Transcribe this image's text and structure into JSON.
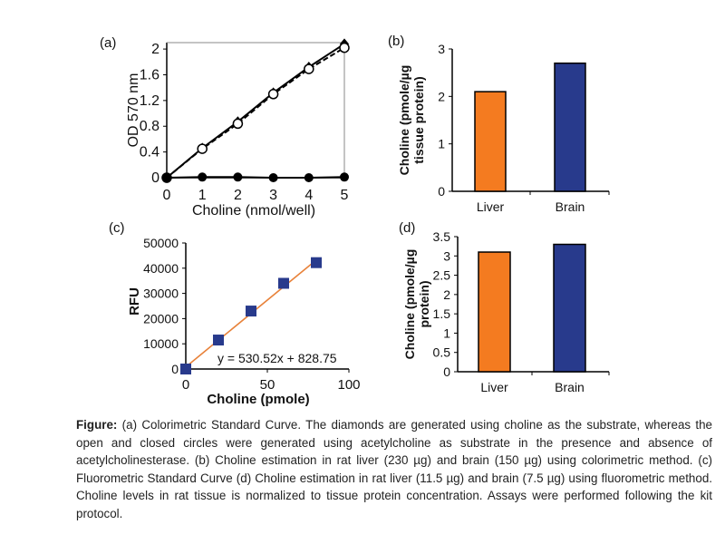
{
  "chart_data": [
    {
      "panel": "(a)",
      "type": "line",
      "xlabel": "Choline  (nmol/well)",
      "ylabel": "OD 570 nm",
      "xlim": [
        0,
        5
      ],
      "ylim": [
        0,
        2.1
      ],
      "xticks": [
        "0",
        "1",
        "2",
        "3",
        "4",
        "5"
      ],
      "yticks": [
        "0",
        "0.4",
        "0.8",
        "1.2",
        "1.6",
        "2"
      ],
      "x": [
        0,
        1,
        2,
        3,
        4,
        5
      ],
      "series": [
        {
          "marker": "diamond",
          "values": [
            0,
            0.46,
            0.87,
            1.32,
            1.72,
            2.08
          ]
        },
        {
          "marker": "open-circle",
          "values": [
            0,
            0.45,
            0.84,
            1.3,
            1.69,
            2.02
          ]
        },
        {
          "marker": "closed-circle",
          "values": [
            0,
            0.01,
            0.01,
            0.0,
            0.0,
            0.01
          ]
        }
      ],
      "grid": false
    },
    {
      "panel": "(b)",
      "type": "bar",
      "categories": [
        "Liver",
        "Brain"
      ],
      "values": [
        2.1,
        2.7
      ],
      "colors": [
        "#f47b20",
        "#283a8c"
      ],
      "ylabel": [
        "Choline (pmole/µg",
        "tissue protein)"
      ],
      "ylim": [
        0,
        3
      ],
      "yticks": [
        "0",
        "1",
        "2",
        "3"
      ]
    },
    {
      "panel": "(c)",
      "type": "scatter",
      "xlabel": "Choline (pmole)",
      "ylabel": "RFU",
      "xlim": [
        0,
        100
      ],
      "ylim": [
        0,
        50000
      ],
      "xticks": [
        "0",
        "50",
        "100"
      ],
      "yticks": [
        "0",
        "10000",
        "20000",
        "30000",
        "40000",
        "50000"
      ],
      "x": [
        0,
        20,
        40,
        60,
        80
      ],
      "y": [
        0,
        11500,
        23000,
        34000,
        42200
      ],
      "marker_color": "#283a8c",
      "trendline": {
        "slope": 530.52,
        "intercept": 828.75,
        "color": "#e8823a",
        "label": "y = 530.52x + 828.75"
      }
    },
    {
      "panel": "(d)",
      "type": "bar",
      "categories": [
        "Liver",
        "Brain"
      ],
      "values": [
        3.1,
        3.3
      ],
      "colors": [
        "#f47b20",
        "#283a8c"
      ],
      "ylabel": [
        "Choline (pmole/µg",
        "protein)"
      ],
      "ylim": [
        0,
        3.5
      ],
      "yticks": [
        "0",
        "0.5",
        "1",
        "1.5",
        "2",
        "2.5",
        "3",
        "3.5"
      ]
    }
  ],
  "caption": {
    "lead": "Figure:",
    "text": " (a) Colorimetric Standard Curve. The diamonds are generated using choline as the substrate, whereas the open and closed circles were generated using acetylcholine as substrate in the presence and absence of acetylcholinesterase. (b) Choline estimation in rat liver (230 µg) and brain (150 µg) using colorimetric method. (c) Fluorometric Standard Curve (d) Choline estimation in rat liver (11.5 µg) and brain (7.5 µg) using fluorometric method. Choline levels in rat tissue is normalized to tissue protein concentration. Assays were performed following the kit protocol."
  }
}
